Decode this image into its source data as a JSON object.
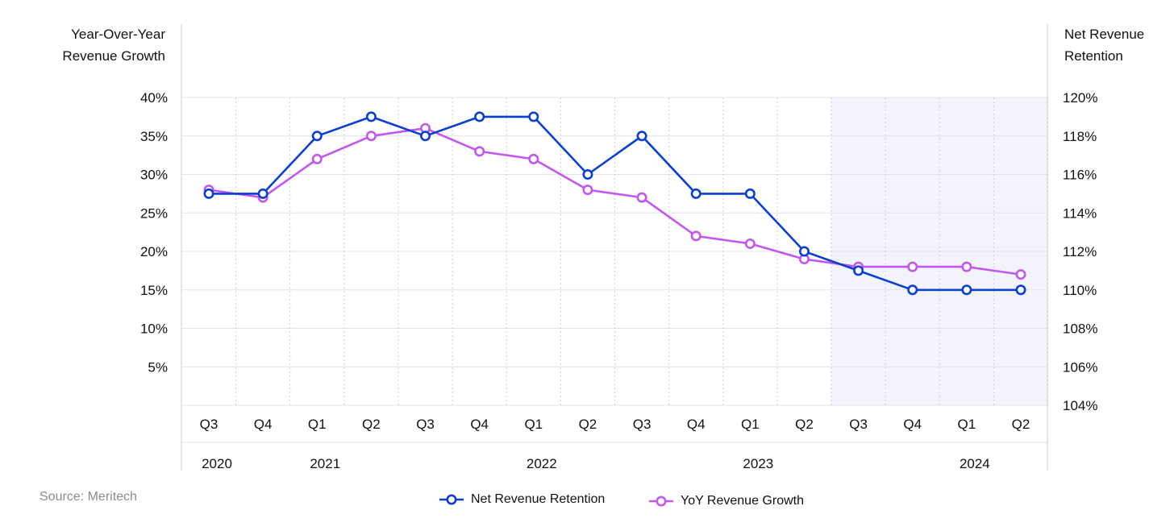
{
  "chart_data": {
    "type": "line",
    "left_axis_title": [
      "Year-Over-Year",
      "Revenue Growth"
    ],
    "right_axis_title": [
      "Net Revenue",
      "Retention"
    ],
    "left_ticks": [
      "40%",
      "35%",
      "30%",
      "25%",
      "20%",
      "15%",
      "10%",
      "5%"
    ],
    "right_ticks": [
      "120%",
      "118%",
      "116%",
      "114%",
      "112%",
      "110%",
      "108%",
      "106%",
      "104%"
    ],
    "left_ylim": [
      0,
      40
    ],
    "right_ylim": [
      104,
      120
    ],
    "categories": [
      "Q3",
      "Q4",
      "Q1",
      "Q2",
      "Q3",
      "Q4",
      "Q1",
      "Q2",
      "Q3",
      "Q4",
      "Q1",
      "Q2",
      "Q3",
      "Q4",
      "Q1",
      "Q2"
    ],
    "years": [
      {
        "label": "2020",
        "index": 0
      },
      {
        "label": "2021",
        "index": 2
      },
      {
        "label": "2022",
        "index": 6
      },
      {
        "label": "2023",
        "index": 10
      },
      {
        "label": "2024",
        "index": 14
      }
    ],
    "shaded_range": [
      12,
      15
    ],
    "series": [
      {
        "name": "Net Revenue Retention",
        "axis": "right",
        "color": "#0a3fd1",
        "values": [
          115,
          115,
          118,
          119,
          118,
          119,
          119,
          116,
          118,
          115,
          115,
          112,
          111,
          110,
          110,
          110
        ]
      },
      {
        "name": "YoY Revenue Growth",
        "axis": "left",
        "color": "#c257f0",
        "values": [
          28,
          27,
          32,
          35,
          36,
          33,
          32,
          28,
          27,
          22,
          21,
          19,
          18,
          18,
          18,
          17
        ]
      }
    ],
    "grid": true
  },
  "legend": {
    "nrr_label": "Net Revenue Retention",
    "yoy_label": "YoY Revenue Growth"
  },
  "source": "Source: Meritech"
}
